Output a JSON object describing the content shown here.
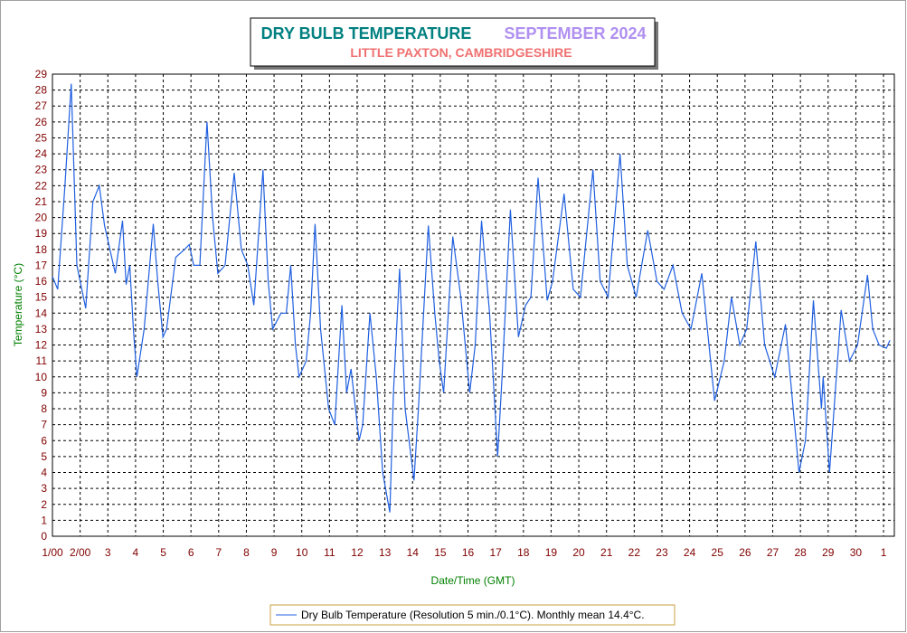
{
  "chart_data": {
    "type": "line",
    "title": "DRY BULB TEMPERATURE",
    "title_month": "SEPTEMBER 2024",
    "subtitle": "LITTLE PAXTON, CAMBRIDGESHIRE",
    "x_label": "Date/Time (GMT)",
    "y_label": "Temperature (°C)",
    "grid": true,
    "xlim": [
      0,
      30.39
    ],
    "ylim": [
      0,
      29
    ],
    "yticks": [
      0,
      1,
      2,
      3,
      4,
      5,
      6,
      7,
      8,
      9,
      10,
      11,
      12,
      13,
      14,
      15,
      16,
      17,
      18,
      19,
      20,
      21,
      22,
      23,
      24,
      25,
      26,
      27,
      28,
      29
    ],
    "xticks": [
      {
        "value": 0,
        "label": "1/00"
      },
      {
        "value": 1,
        "label": "2/00"
      },
      {
        "value": 2,
        "label": "3"
      },
      {
        "value": 3,
        "label": "4"
      },
      {
        "value": 4,
        "label": "5"
      },
      {
        "value": 5,
        "label": "6"
      },
      {
        "value": 6,
        "label": "7"
      },
      {
        "value": 7,
        "label": "8"
      },
      {
        "value": 8,
        "label": "9"
      },
      {
        "value": 9,
        "label": "10"
      },
      {
        "value": 10,
        "label": "11"
      },
      {
        "value": 11,
        "label": "12"
      },
      {
        "value": 12,
        "label": "13"
      },
      {
        "value": 13,
        "label": "14"
      },
      {
        "value": 14,
        "label": "15"
      },
      {
        "value": 15,
        "label": "16"
      },
      {
        "value": 16,
        "label": "17"
      },
      {
        "value": 17,
        "label": "18"
      },
      {
        "value": 18,
        "label": "19"
      },
      {
        "value": 19,
        "label": "20"
      },
      {
        "value": 20,
        "label": "21"
      },
      {
        "value": 21,
        "label": "22"
      },
      {
        "value": 22,
        "label": "23"
      },
      {
        "value": 23,
        "label": "24"
      },
      {
        "value": 24,
        "label": "25"
      },
      {
        "value": 25,
        "label": "26"
      },
      {
        "value": 26,
        "label": "27"
      },
      {
        "value": 27,
        "label": "28"
      },
      {
        "value": 28,
        "label": "29"
      },
      {
        "value": 29,
        "label": "30"
      },
      {
        "value": 30,
        "label": "1"
      }
    ],
    "x": [
      0,
      0.19,
      0.45,
      0.68,
      0.88,
      1.2,
      1.46,
      1.69,
      1.88,
      2.27,
      2.53,
      2.66,
      2.79,
      2.92,
      3.05,
      3.31,
      3.64,
      3.8,
      3.99,
      4.12,
      4.45,
      4.77,
      4.94,
      5.1,
      5.32,
      5.58,
      5.78,
      5.97,
      6.23,
      6.56,
      6.82,
      7.05,
      7.27,
      7.6,
      7.79,
      7.95,
      8.25,
      8.44,
      8.6,
      8.77,
      8.9,
      9.16,
      9.32,
      9.48,
      9.68,
      9.97,
      10.19,
      10.45,
      10.62,
      10.78,
      11.07,
      11.2,
      11.46,
      11.69,
      11.92,
      12.18,
      12.31,
      12.53,
      12.73,
      13.05,
      13.21,
      13.57,
      13.8,
      13.96,
      14.12,
      14.45,
      14.74,
      15.06,
      15.26,
      15.49,
      15.78,
      16.07,
      16.23,
      16.53,
      16.82,
      17.08,
      17.27,
      17.53,
      17.86,
      18.05,
      18.47,
      18.8,
      19.06,
      19.51,
      19.77,
      20.06,
      20.49,
      20.75,
      21.07,
      21.49,
      21.82,
      22.08,
      22.4,
      22.73,
      23.05,
      23.44,
      23.9,
      24.25,
      24.51,
      24.81,
      25.06,
      25.39,
      25.71,
      26.07,
      26.46,
      26.95,
      27.18,
      27.47,
      27.76,
      27.82,
      28.05,
      28.47,
      28.77,
      29.06,
      29.42,
      29.61,
      29.84,
      30.1,
      30.23
    ],
    "series": [
      {
        "name": "Dry Bulb Temperature (Resolution 5 min./0.1°C). Monthly mean 14.4°C.",
        "color": "#2060e0",
        "values": [
          16.3,
          15.5,
          22,
          28.4,
          17,
          14.3,
          21,
          22,
          19.5,
          16.5,
          19.8,
          15.8,
          17,
          13,
          10,
          13,
          19.6,
          16,
          12.5,
          13,
          17.5,
          18,
          18.3,
          17,
          17,
          26,
          20,
          16.5,
          17,
          22.8,
          18,
          17,
          14.5,
          23,
          16,
          13,
          14,
          14,
          17,
          12,
          10,
          11,
          14,
          19.6,
          13,
          8,
          7,
          14.5,
          9,
          10.5,
          6,
          7,
          14,
          10,
          4,
          1.5,
          9,
          16.8,
          8,
          3.5,
          8,
          19.5,
          14,
          11,
          9,
          18.8,
          15,
          9,
          12,
          19.8,
          14,
          5,
          10,
          20.5,
          12.5,
          14.5,
          15,
          22.5,
          14.8,
          16,
          21.5,
          15.5,
          15,
          23,
          16,
          15,
          24,
          17,
          15,
          19.2,
          16,
          15.5,
          17,
          14,
          13,
          16.5,
          8.5,
          11,
          15,
          12,
          13,
          18.5,
          12,
          10,
          13.3,
          4,
          6,
          14.8,
          8,
          10,
          4,
          14.2,
          11,
          12,
          16.4,
          13,
          12,
          11.8,
          12.3
        ]
      }
    ]
  }
}
